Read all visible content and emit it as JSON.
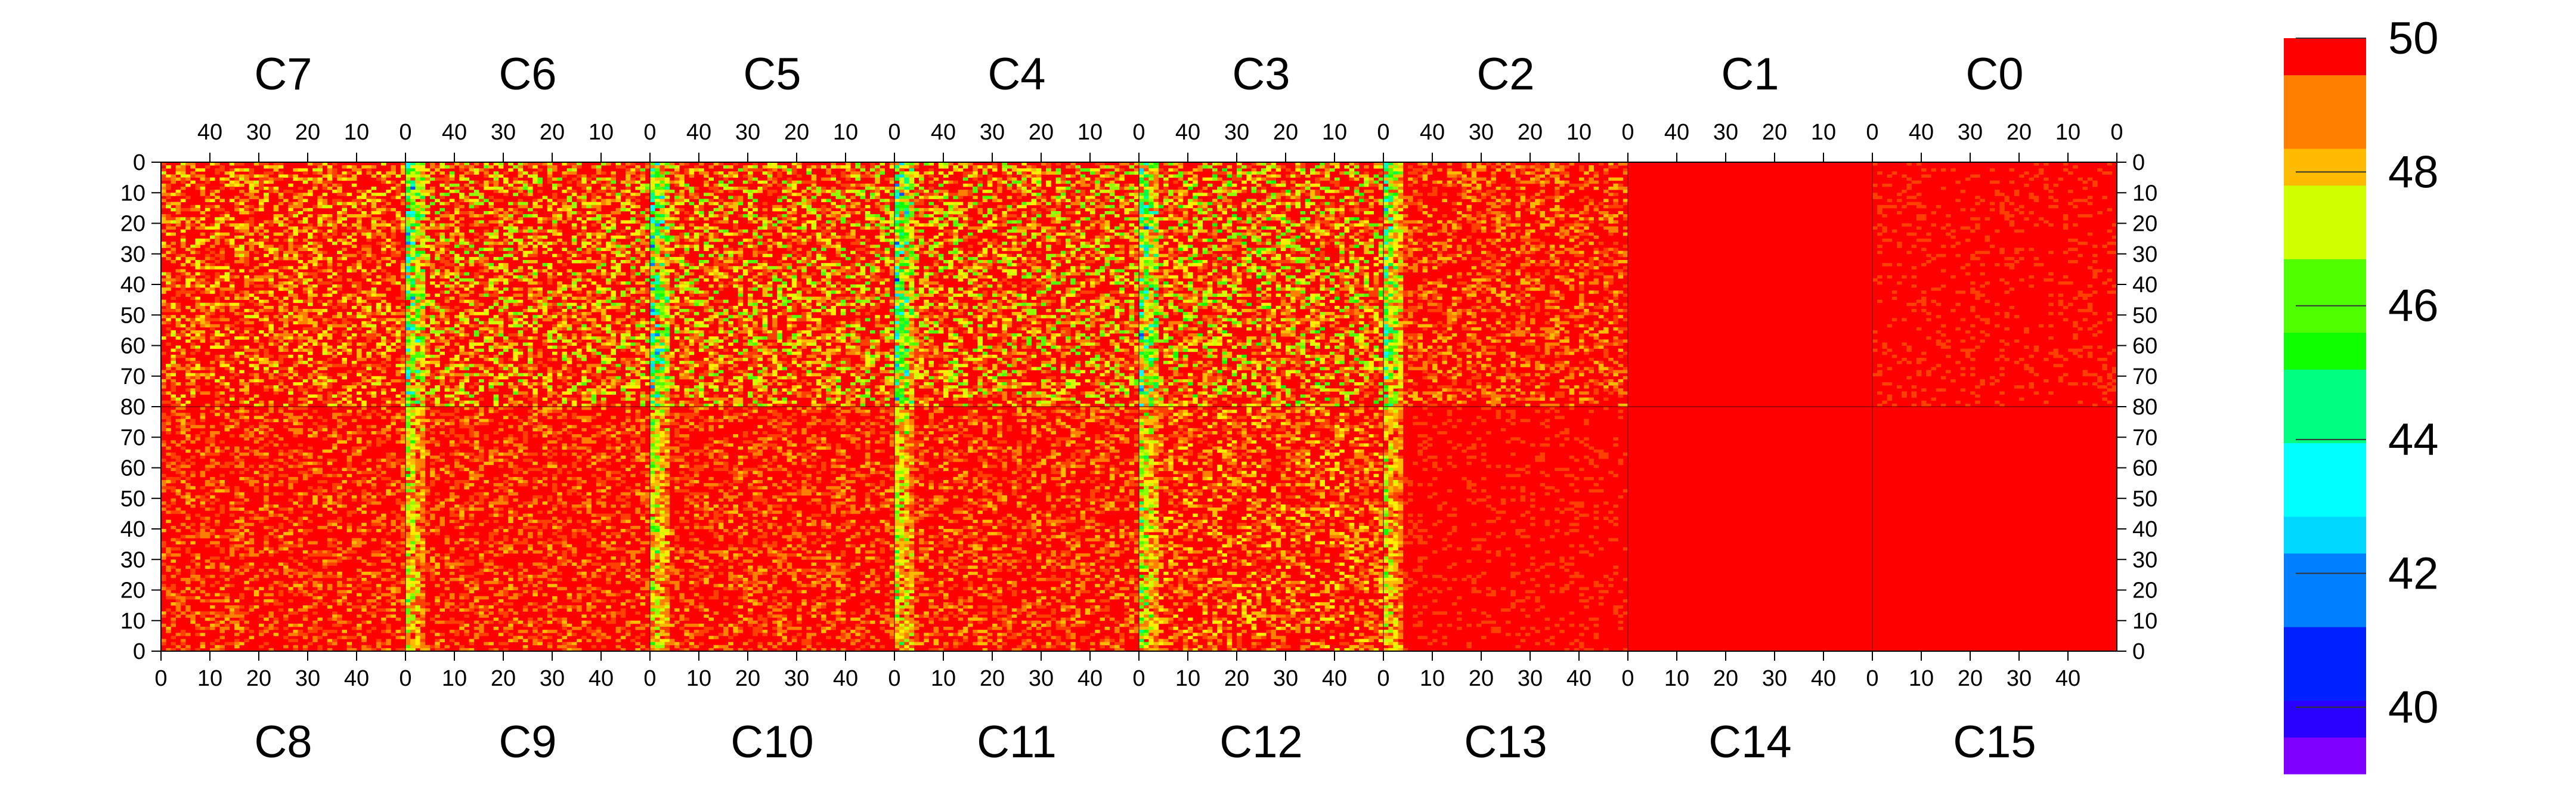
{
  "chart_data": {
    "type": "heatmap",
    "title": "",
    "xlabel": "",
    "ylabel": "",
    "top_row_chips": [
      "C7",
      "C6",
      "C5",
      "C4",
      "C3",
      "C2",
      "C1",
      "C0"
    ],
    "bottom_row_chips": [
      "C8",
      "C9",
      "C10",
      "C11",
      "C12",
      "C13",
      "C14",
      "C15"
    ],
    "chip_columns": 50,
    "chip_rows": 80,
    "x_ticks": [
      0,
      10,
      20,
      30,
      40
    ],
    "x_tick_labels": [
      "0",
      "10",
      "20",
      "30",
      "40"
    ],
    "top_x_tick_labels": [
      "40",
      "30",
      "20",
      "10",
      "0"
    ],
    "y_ticks_top_half": [
      0,
      10,
      20,
      30,
      40,
      50,
      60,
      70,
      80
    ],
    "y_tick_labels_top": [
      "0",
      "10",
      "20",
      "30",
      "40",
      "50",
      "60",
      "70",
      "80"
    ],
    "y_tick_labels_bottom": [
      "70",
      "60",
      "50",
      "40",
      "30",
      "20",
      "10",
      "0"
    ],
    "colorbar": {
      "min": 39,
      "max": 50,
      "ticks": [
        40,
        42,
        44,
        46,
        48,
        50
      ],
      "tick_labels": [
        "40",
        "42",
        "44",
        "46",
        "48",
        "50"
      ],
      "bands": 20
    },
    "approx_chip_means": {
      "C7": 49.7,
      "C6": 49.5,
      "C5": 49.5,
      "C4": 49.5,
      "C3": 49.4,
      "C2": 49.8,
      "C1": 49.97,
      "C0": 49.9,
      "C8": 49.8,
      "C9": 49.8,
      "C10": 49.8,
      "C11": 49.8,
      "C12": 49.7,
      "C13": 49.9,
      "C14": 49.98,
      "C15": 49.97
    },
    "low_value_columns": "columns 0-4 of each chip boundary (between C7|C6, C6|C5, C5|C4, C4|C3, C3|C2) reach 42-47"
  },
  "colors": {
    "palette": [
      "#7f00ff",
      "#5a00ff",
      "#2a00ff",
      "#0020ff",
      "#0050ff",
      "#0080ff",
      "#00aaff",
      "#00d8ff",
      "#00ffff",
      "#00ffc0",
      "#00ff80",
      "#00ff40",
      "#10ff00",
      "#50ff00",
      "#90ff00",
      "#d0ff00",
      "#ffee00",
      "#ffbb00",
      "#ff8000",
      "#ff4000",
      "#ff0000"
    ],
    "frame": "#000000",
    "divider": "#7a0000"
  }
}
